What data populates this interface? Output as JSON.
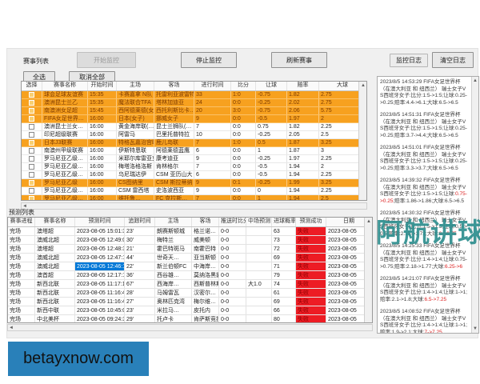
{
  "toolbar": {
    "list_label": "赛事列表",
    "start_btn": "开始监控",
    "stop_btn": "停止监控",
    "refresh_btn": "刷新赛事",
    "select_all_btn": "全选",
    "deselect_all_btn": "取消全部",
    "monitor_log_btn": "监控日志",
    "clear_log_btn": "清空日志"
  },
  "match_table": {
    "headers": [
      "选择",
      "赛事名称",
      "开始时间",
      "主场",
      "客场",
      "进行时间",
      "比分",
      "让球",
      "赔率",
      "大球"
    ],
    "rows": [
      {
        "selected": true,
        "name": "球会足球友谊赛",
        "time": "15:35",
        "home": "卡赛嘉拿 N队",
        "away": "托雷利亚波雷特",
        "minute": "33",
        "score": "1:0",
        "handicap": "-0.75",
        "odds": "1.82",
        "over": "2.75"
      },
      {
        "selected": true,
        "name": "澳洲昆士兰乙",
        "time": "15:35",
        "home": "魔法联合TFA",
        "away": "塔林加迪亚",
        "minute": "24",
        "score": "0:0",
        "handicap": "-0.25",
        "odds": "2.02",
        "over": "2.75"
      },
      {
        "selected": true,
        "name": "南澳洲女足超",
        "time": "15:45",
        "home": "西阿德莱德(女",
        "away": "西托利斯比卡…",
        "minute": "20",
        "score": "3:0",
        "handicap": "-0.75",
        "odds": "2.06",
        "over": "5.75"
      },
      {
        "selected": true,
        "name": "FIFA女足世界…",
        "time": "16:00",
        "home": "日本(女子)",
        "away": "挪威女子",
        "minute": "9",
        "score": "0:0",
        "handicap": "-0.5",
        "odds": "1.97",
        "over": "2"
      },
      {
        "selected": false,
        "name": "澳洲昆士兰女…",
        "time": "16:00",
        "home": "黄金海岸联(…",
        "away": "昆士兰狮队(…",
        "minute": "7",
        "score": "0:0",
        "handicap": "0.75",
        "odds": "1.82",
        "over": "2.25"
      },
      {
        "selected": false,
        "name": "印尼超级联赛",
        "time": "16:00",
        "home": "阿雷马",
        "away": "巴里托普特拉",
        "minute": "10",
        "score": "0:0",
        "handicap": "-0.25",
        "odds": "2.05",
        "over": "2.5"
      },
      {
        "selected": true,
        "name": "日本J3联赛",
        "time": "16:00",
        "home": "特格瓦嘉治宫崎",
        "away": "鹿儿岛联",
        "minute": "7",
        "score": "1:0",
        "handicap": "0.5",
        "odds": "1.87",
        "over": "3.25"
      },
      {
        "selected": false,
        "name": "南澳州甲级联赛",
        "time": "16:00",
        "home": "伊斯特恩联",
        "away": "阿德莱德蓝鹰",
        "minute": "6",
        "score": "0:0",
        "handicap": "1",
        "odds": "1.87",
        "over": "3"
      },
      {
        "selected": false,
        "name": "罗马尼亚乙级…",
        "time": "16:00",
        "home": "米耶尔库雷亚克",
        "away": "康考迪亚",
        "minute": "9",
        "score": "0:0",
        "handicap": "-0.25",
        "odds": "1.97",
        "over": "2.25"
      },
      {
        "selected": false,
        "name": "罗马尼亚乙级…",
        "time": "16:00",
        "home": "梅塔洛格洛斯",
        "away": "肯林格尔",
        "minute": "7",
        "score": "0:0",
        "handicap": "-0.5",
        "odds": "1.94",
        "over": "2"
      },
      {
        "selected": false,
        "name": "罗马尼亚乙级…",
        "time": "16:00",
        "home": "乌尼瑞达伊",
        "away": "CSM 亚历山大",
        "minute": "6",
        "score": "0:0",
        "handicap": "-0.5",
        "odds": "1.94",
        "over": "2.25"
      },
      {
        "selected": true,
        "name": "罗马尼亚乙级",
        "time": "16:00",
        "home": "CS图纳里",
        "away": "CSM 斯拉蒂纳",
        "minute": "9",
        "score": "0:1",
        "handicap": "-0.25",
        "odds": "1.99",
        "over": "3.25"
      },
      {
        "selected": false,
        "name": "罗马尼亚乙级…",
        "time": "16:00",
        "home": "CSM 雷西塔",
        "away": "史洛波西亚",
        "minute": "9",
        "score": "0:0",
        "handicap": "0",
        "odds": "1.94",
        "over": "2.25"
      },
      {
        "selected": true,
        "name": "罗马尼亚乙级…",
        "time": "16:00",
        "home": "维托鲁…",
        "away": "FC 克拉斯…",
        "minute": "7",
        "score": "0:0",
        "handicap": "1",
        "odds": "1.94",
        "over": "2.5"
      }
    ]
  },
  "prediction_section": {
    "label": "预测列表",
    "headers": [
      "赛事进程",
      "赛事名称",
      "预测时间",
      "追踪时间",
      "主场",
      "客场",
      "推送时比分",
      "中场预测",
      "进球概率",
      "预测成功",
      "日期"
    ],
    "rows": [
      {
        "status": "完场",
        "league": "澳塔超",
        "ptime": "2023-08-05 15:01:38",
        "ptime_selected": false,
        "ttime": "23'",
        "home": "朗赛斯顿城",
        "away": "格兰诺…",
        "score": "0-0",
        "half": "",
        "prob": "63",
        "result": "失败",
        "date": "2023-08-05"
      },
      {
        "status": "完场",
        "league": "澳威北超",
        "ptime": "2023-08-05 12:49:07",
        "ptime_selected": false,
        "ttime": "30'",
        "home": "梅特兰",
        "away": "威美顿",
        "score": "0-0",
        "half": "",
        "prob": "73",
        "result": "失败",
        "date": "2023-08-05"
      },
      {
        "status": "完场",
        "league": "澳塔超",
        "ptime": "2023-08-05 12:48:39",
        "ptime_selected": false,
        "ttime": "21'",
        "home": "霍巴特斑马",
        "away": "南霍巴特",
        "score": "0-0",
        "half": "",
        "prob": "72",
        "result": "失败",
        "date": "2023-08-05"
      },
      {
        "status": "完场",
        "league": "澳威北超",
        "ptime": "2023-08-05 12:47:15",
        "ptime_selected": false,
        "ttime": "44'",
        "home": "世奇天…",
        "away": "亚当斯顿",
        "score": "0-0",
        "half": "",
        "prob": "69",
        "result": "失败",
        "date": "2023-08-05"
      },
      {
        "status": "完场",
        "league": "澳威北超",
        "ptime": "2023-08-05 12:46:17",
        "ptime_selected": true,
        "ttime": "22'",
        "home": "新兰伯顿FC",
        "away": "中海岸…",
        "score": "0-0",
        "half": "",
        "prob": "71",
        "result": "失败",
        "date": "2023-08-05"
      },
      {
        "status": "完场",
        "league": "澳首超",
        "ptime": "2023-08-05 12:17:16",
        "ptime_selected": false,
        "ttime": "36'",
        "home": "西谷雄…",
        "away": "莫纳洛黑豹",
        "score": "0-0",
        "half": "",
        "prob": "79",
        "result": "失败",
        "date": "2023-08-05"
      },
      {
        "status": "完场",
        "league": "新西北联",
        "ptime": "2023-08-05 11:17:11",
        "ptime_selected": false,
        "ttime": "67'",
        "home": "西海岸…",
        "away": "西斯普林斯",
        "score": "0-0",
        "half": "大1.0",
        "prob": "74",
        "result": "失败",
        "date": "2023-08-05"
      },
      {
        "status": "完场",
        "league": "新西北联",
        "ptime": "2023-08-05 11:16:42",
        "ptime_selected": false,
        "ttime": "28'",
        "home": "马姆雷瓦",
        "away": "汉密尔…",
        "score": "0-0",
        "half": "",
        "prob": "61",
        "result": "失败",
        "date": "2023-08-05"
      },
      {
        "status": "完场",
        "league": "新西北联",
        "ptime": "2023-08-05 11:16:42",
        "ptime_selected": false,
        "ttime": "27'",
        "home": "奥林匹克湾",
        "away": "梅尔维…",
        "score": "0-0",
        "half": "",
        "prob": "69",
        "result": "失败",
        "date": "2023-08-05"
      },
      {
        "status": "完场",
        "league": "新西中联",
        "ptime": "2023-08-05 10:45:00",
        "ptime_selected": false,
        "ttime": "23'",
        "home": "米拉马…",
        "away": "皮托内",
        "score": "0-0",
        "half": "",
        "prob": "66",
        "result": "失败",
        "date": "2023-08-05"
      },
      {
        "status": "完场",
        "league": "中北美杯",
        "ptime": "2023-08-05 09:24:39",
        "ptime_selected": false,
        "ttime": "29'",
        "home": "托卢卡",
        "away": "肯萨斯竞技",
        "score": "0-0",
        "half": "",
        "prob": "80",
        "result": "失败",
        "date": "2023-08-05"
      }
    ]
  },
  "log": {
    "entries": [
      {
        "segments": [
          {
            "t": "2023/8/5 14:53:29 FIFA女足世界杯（在澳大利亚 和 纽西兰） 瑞士女子VS西班牙女子:比分:1:5->1:5;让球:0.25->0.25;赔率:4.4->6.1;大球:6.5->6.5",
            "red": false
          }
        ]
      },
      {
        "segments": [
          {
            "t": "2023/8/5 14:51:31 FIFA女足世界杯（在澳大利亚 和 纽西兰） 瑞士女子VS西班牙女子:比分:1:5->1:5;让球:0.25->0.25;赔率:3.7->4.4;大球:6.5->6.5",
            "red": false
          }
        ]
      },
      {
        "segments": [
          {
            "t": "2023/8/5 14:51:01 FIFA女足世界杯（在澳大利亚 和 纽西兰） 瑞士女子VS西班牙女子:比分:1:5->1:5;让球:0.25->0.25;赔率:3.3->3.7;大球:6.5->6.5",
            "red": false
          }
        ]
      },
      {
        "segments": [
          {
            "t": "2023/8/5 14:39:32 FIFA女足世界杯（在澳大利亚 和 纽西兰） 瑞士女子VS西班牙女子:比分:1:5->1:5;让球:",
            "red": false
          },
          {
            "t": "0.75->0.25",
            "red": true
          },
          {
            "t": ";赔率:1.86->1.86;大球:6.5->6.5",
            "red": false
          }
        ]
      },
      {
        "segments": [
          {
            "t": "2023/8/5 14:30:32 FIFA女足世界杯（在澳大利亚 和 纽西兰） 瑞士女子VS西班牙女子:比分:1:5->1:5;让球:0.5->0.5;赔率:2.15->1.73;大球:",
            "red": false
          },
          {
            "t": "6->6.75",
            "red": true
          }
        ]
      },
      {
        "segments": [
          {
            "t": "2023/8/5 14:25:33 FIFA女足世界杯（在澳大利亚 和 纽西兰） 瑞士女子VS西班牙女子:比分:1:4->1:4;让球:0.75->0.75;赔率:2.18->1.77;大球:",
            "red": false
          },
          {
            "t": "6.25->6",
            "red": true
          }
        ]
      },
      {
        "segments": [
          {
            "t": "2023/8/5 14:21:07 FIFA女足世界杯（在澳大利亚 和 纽西兰） 瑞士女子VS西班牙女子:比分:1:4->1:4;让球:1->1;赔率:2.1->1.8;大球:",
            "red": false
          },
          {
            "t": "6.5->7.25",
            "red": true
          }
        ]
      },
      {
        "segments": [
          {
            "t": "2023/8/5 14:08:52 FIFA女足世界杯（在澳大利亚 和 纽西兰） 瑞士女子VS西班牙女子:比分:1:4->1:4;让球:1->1;赔率:1.9->2.1;大球:",
            "red": false
          },
          {
            "t": "7->7.25",
            "red": true
          }
        ]
      }
    ]
  },
  "watermark_text": "阿航讲球",
  "site_banner": "betayxnow.com",
  "colors": {
    "row_highlight": "#f7a11f",
    "selected_cell": "#0078d7",
    "fail_bg": "#ed1c24",
    "fail_text": "#8b0000",
    "watermark": "#2e8f8f",
    "banner": "#2980b9",
    "log_alert": "#dd2222"
  }
}
